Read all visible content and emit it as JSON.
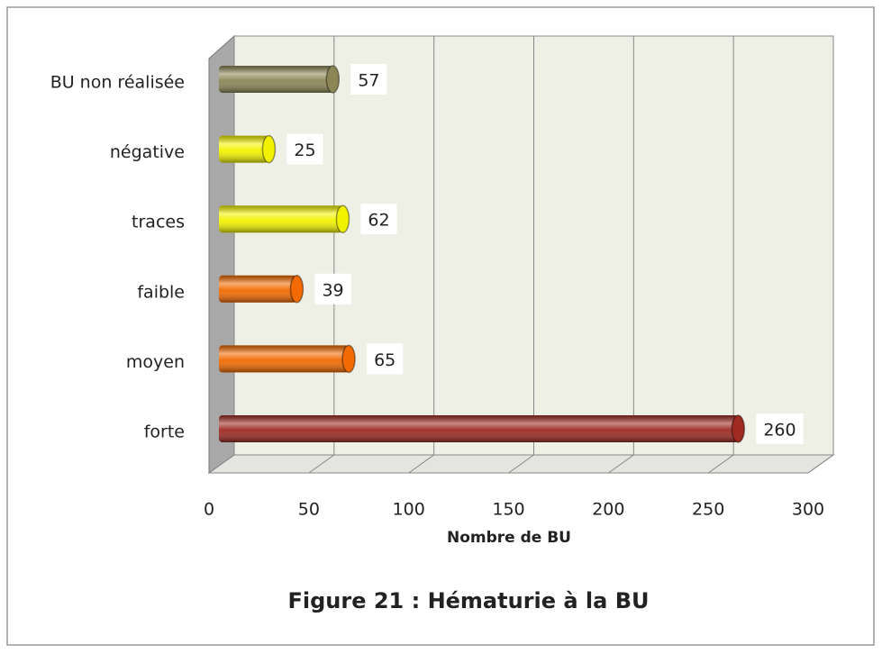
{
  "chart_data": {
    "type": "barh",
    "categories": [
      "BU non réalisée",
      "négative",
      "traces",
      "faible",
      "moyen",
      "forte"
    ],
    "values": [
      57,
      25,
      62,
      39,
      65,
      260
    ],
    "colors": [
      "#8c8656",
      "#f2f200",
      "#f2f200",
      "#f26a00",
      "#f26a00",
      "#9e2a22"
    ],
    "xlim": [
      0,
      300
    ],
    "xticks": [
      0,
      50,
      100,
      150,
      200,
      250,
      300
    ],
    "xlabel": "Nombre de BU",
    "caption": "Figure 21 : Hématurie à la BU",
    "grid": true
  }
}
